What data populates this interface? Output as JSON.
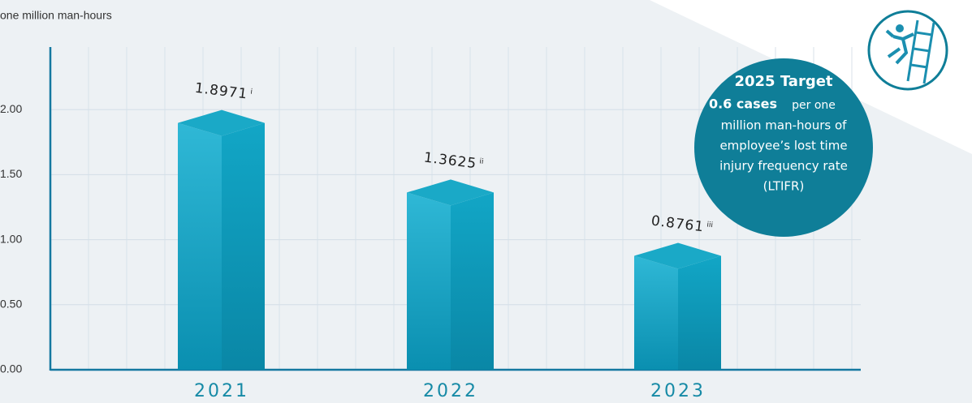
{
  "chart_data": {
    "type": "bar",
    "y_axis_label": "one million man-hours",
    "categories": [
      "2021",
      "2022",
      "2023"
    ],
    "values": [
      1.8971,
      1.3625,
      0.8761
    ],
    "footnotes": [
      "i",
      "ii",
      "iii"
    ],
    "color": "#1aa9c7",
    "ylim": [
      0,
      2.4
    ],
    "yticks": [
      {
        "value": 0,
        "label": "0.00"
      },
      {
        "value": 0.5,
        "label": "0.50"
      },
      {
        "value": 1,
        "label": "1.00"
      },
      {
        "value": 1.5,
        "label": "1.50"
      },
      {
        "value": 2,
        "label": "2.00"
      }
    ],
    "grid": true,
    "target": {
      "title": "2025 Target",
      "value_text": "0.6 cases",
      "text_1": "per one",
      "text_2": "million man-hours of",
      "text_3": "employee’s lost time",
      "text_4": "injury frequency rate",
      "text_5": "(LTIFR)"
    }
  }
}
